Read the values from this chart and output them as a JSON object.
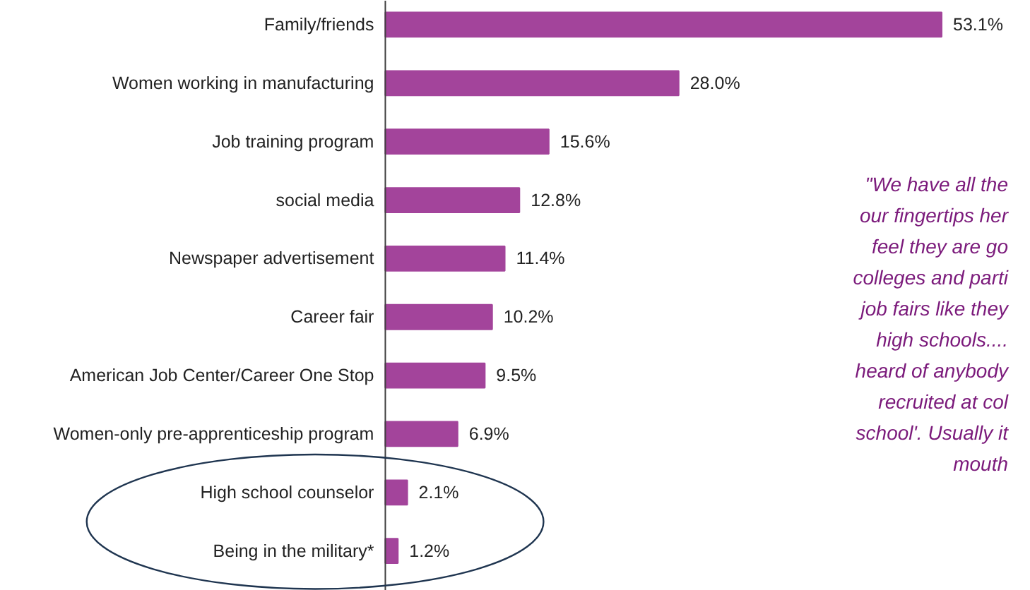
{
  "chart_data": {
    "type": "bar",
    "orientation": "horizontal",
    "categories": [
      "Family/friends",
      "Women working in manufacturing",
      "Job training program",
      "social media",
      "Newspaper advertisement",
      "Career fair",
      "American Job Center/Career One Stop",
      "Women-only pre-apprenticeship program",
      "High school counselor",
      "Being in the military*"
    ],
    "values": [
      53.1,
      28.0,
      15.6,
      12.8,
      11.4,
      10.2,
      9.5,
      6.9,
      2.1,
      1.2
    ],
    "value_labels": [
      "53.1%",
      "28.0%",
      "15.6%",
      "12.8%",
      "11.4%",
      "10.2%",
      "9.5%",
      "6.9%",
      "2.1%",
      "1.2%"
    ],
    "color": "#a3449b",
    "grid": false,
    "annotations": [
      "\"We have all the\nour fingertips her\nfeel they are go\ncolleges and parti\njob fairs like they\nhigh schools....\nheard of anybody\nrecruited at col\nschool'. Usually it\nmouth"
    ]
  }
}
